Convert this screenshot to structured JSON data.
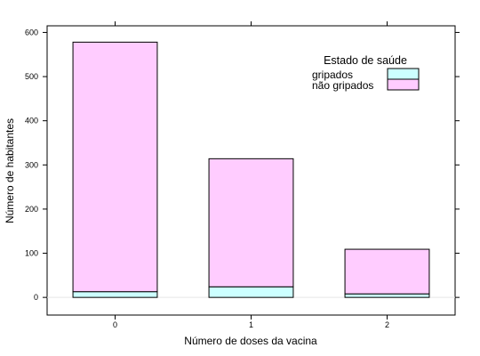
{
  "chart_data": {
    "type": "bar",
    "stacked": true,
    "categories": [
      "0",
      "1",
      "2"
    ],
    "series": [
      {
        "name": "gripados",
        "values": [
          13,
          24,
          8
        ],
        "color": "#ccffff"
      },
      {
        "name": "não gripados",
        "values": [
          565,
          290,
          101
        ],
        "color": "#ffccff"
      }
    ],
    "xlabel": "Número de doses da vacina",
    "ylabel": "Número de habitantes",
    "ylim": [
      -40,
      615
    ],
    "yticks": [
      0,
      100,
      200,
      300,
      400,
      500,
      600
    ],
    "grid": false,
    "legend": {
      "title": "Estado de saúde",
      "placement": "top-right"
    }
  }
}
